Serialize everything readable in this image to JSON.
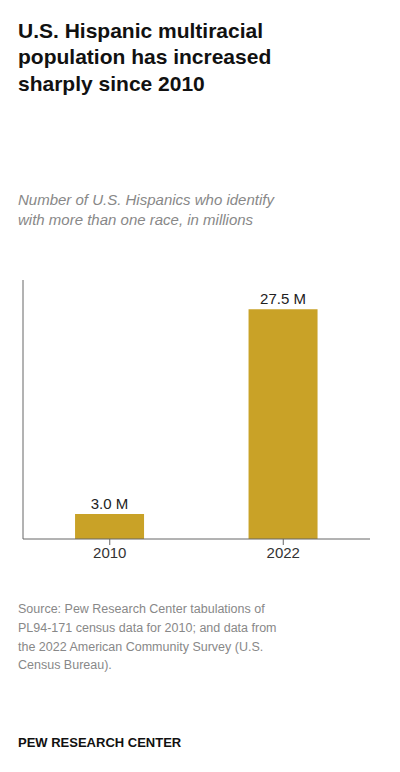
{
  "chart_data": {
    "type": "bar",
    "title": "U.S. Hispanic multiracial\npopulation has increased\nsharply since 2010",
    "subtitle": "Number of U.S. Hispanics who identify\nwith more than one race, in millions",
    "categories": [
      "2010",
      "2022"
    ],
    "values": [
      3.0,
      27.5
    ],
    "value_labels": [
      "3.0 M",
      "27.5 M"
    ],
    "data_labels": true,
    "color": "#C9A227",
    "ylim": [
      0,
      31
    ],
    "tick_labels": "x",
    "grid": false,
    "annotations": [
      "Source: Pew Research Center tabulations of\nPL94-171 census data for 2010; and data from\nthe 2022 American Community Survey (U.S.\nCensus Bureau).",
      "PEW RESEARCH CENTER"
    ]
  }
}
